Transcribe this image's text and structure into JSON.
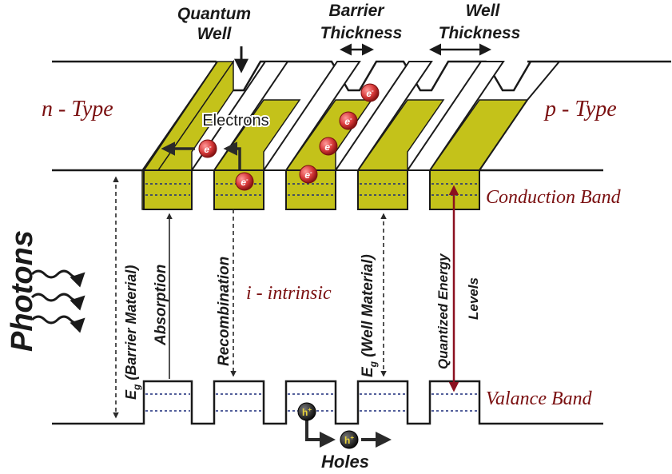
{
  "labels": {
    "quantum_well_1": "Quantum",
    "quantum_well_2": "Well",
    "barrier_thickness_1": "Barrier",
    "barrier_thickness_2": "Thickness",
    "well_thickness_1": "Well",
    "well_thickness_2": "Thickness",
    "n_type": "n - Type",
    "p_type": "p - Type",
    "electrons": "Electrons",
    "conduction_band": "Conduction Band",
    "valance_band": "Valance Band",
    "photons": "Photons",
    "barrier_material": "(Barrier Material)",
    "eg_symbol": "E",
    "eg_sub": "g",
    "absorption": "Absorption",
    "recombination": "Recombination",
    "intrinsic": "i - intrinsic",
    "well_material": "(Well Material)",
    "quantized_1": "Quantized Energy",
    "quantized_2": "Levels",
    "holes": "Holes",
    "electron_symbol": "e",
    "electron_sup": "-",
    "hole_symbol": "h",
    "hole_sup": "+"
  },
  "colors": {
    "well_fill": "#c4c21a",
    "well_stroke": "#1a1a1a",
    "red_label": "#7a0f10",
    "quantized_arrow": "#8b1020",
    "electron": "#d83a3a",
    "hole": "#2a2a2a",
    "dotted_level": "#1a2a7a"
  }
}
